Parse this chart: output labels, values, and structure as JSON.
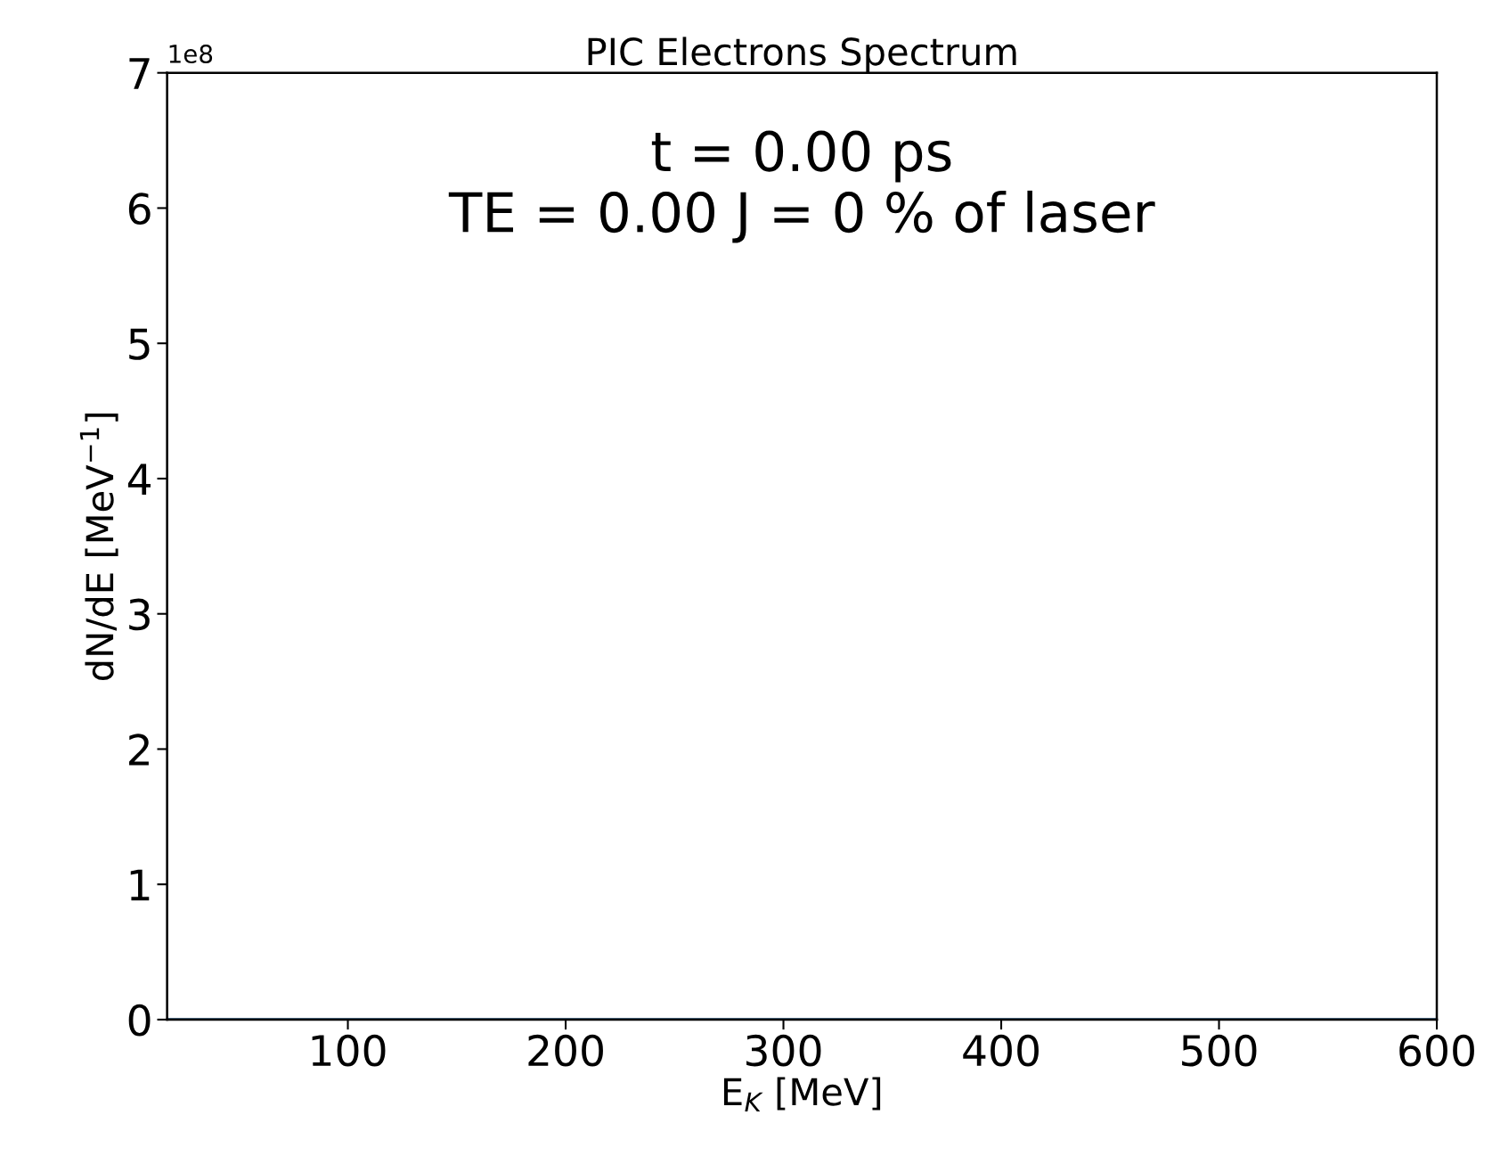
{
  "chart_data": {
    "type": "line",
    "title": "PIC Electrons Spectrum",
    "xlabel": "E$_{K}$ [MeV]",
    "ylabel": "dN/dE [MeV$^{−1}$]",
    "x": [
      17,
      600
    ],
    "series": [
      {
        "color": "#1f4e79",
        "values": [
          0,
          0
        ]
      }
    ],
    "xlim": [
      17,
      600
    ],
    "xticks": [
      100,
      200,
      300,
      400,
      500,
      600
    ],
    "ylim": [
      0,
      7
    ],
    "yticks": [
      0,
      1,
      2,
      3,
      4,
      5,
      6,
      7
    ],
    "annotations": [
      "1e8",
      "t = 0.00 ps\nTE = 0.00 J = 0 % of laser"
    ],
    "grid": false,
    "legend": false,
    "marker": "none",
    "line_style": "solid"
  }
}
